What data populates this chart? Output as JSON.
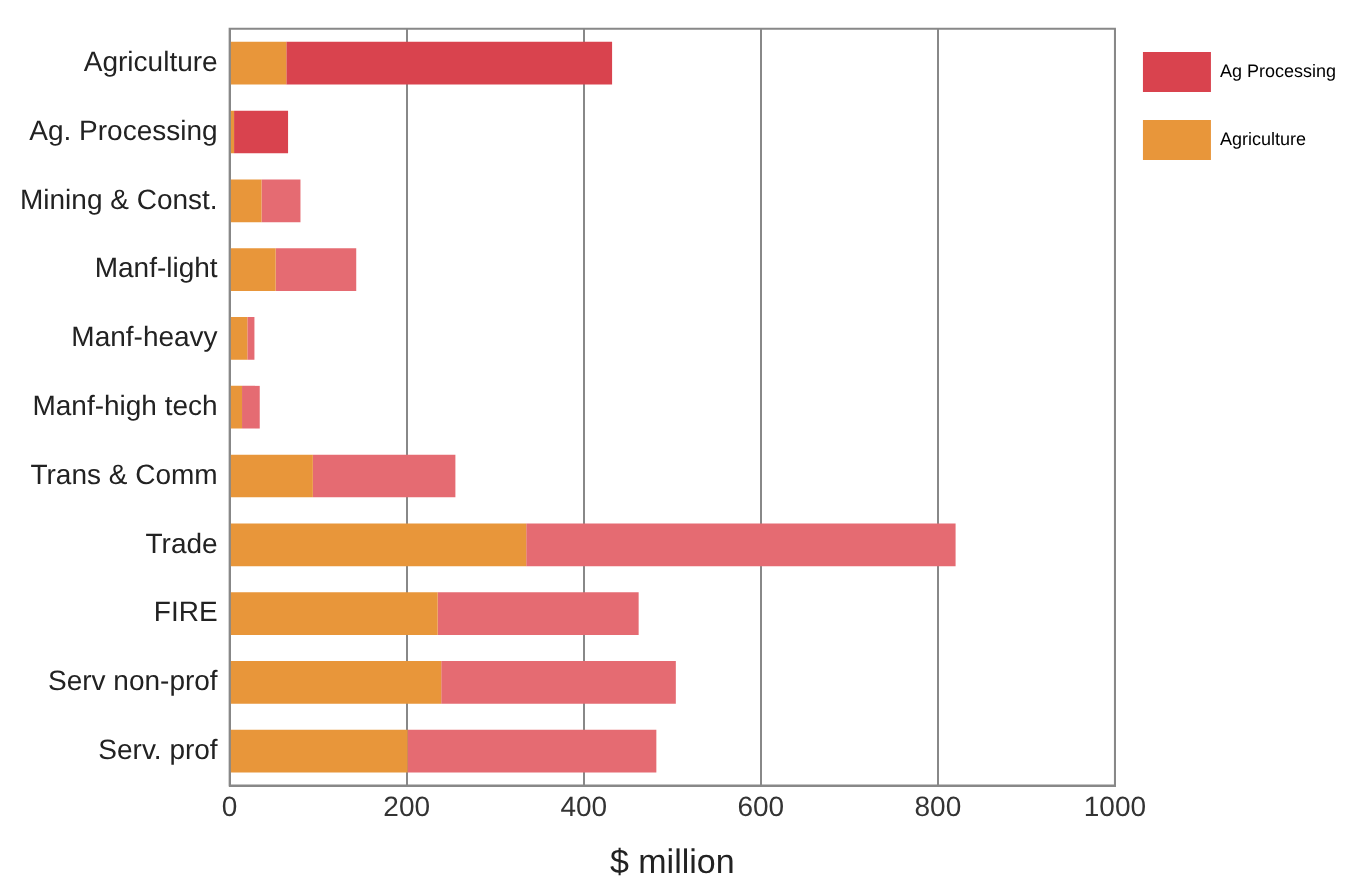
{
  "chart_data": {
    "type": "bar",
    "orientation": "horizontal",
    "stacked": true,
    "xlabel": "$ million",
    "categories": [
      "Agriculture",
      "Ag. Processing",
      "Mining & Const.",
      "Manf-light",
      "Manf-heavy",
      "Manf-high tech",
      "Trans & Comm",
      "Trade",
      "FIRE",
      "Serv non-prof",
      "Serv. prof"
    ],
    "series": [
      {
        "name": "Agriculture",
        "color": "#e8963a",
        "values": [
          64,
          5,
          36,
          52,
          20,
          14,
          94,
          335,
          235,
          239,
          201
        ]
      },
      {
        "name": "Ag Processing",
        "color": "#d9434e",
        "colors": [
          "#d9434e",
          "#d9434e",
          "#e56b72",
          "#e56b72",
          "#e56b72",
          "#e56b72",
          "#e56b72",
          "#e56b72",
          "#e56b72",
          "#e56b72",
          "#e56b72"
        ],
        "values": [
          368,
          61,
          44,
          91,
          8,
          20,
          161,
          485,
          227,
          265,
          281
        ]
      }
    ],
    "xlim": [
      0,
      1000
    ],
    "xticks": [
      0,
      200,
      400,
      600,
      800,
      1000
    ],
    "grid": "x",
    "legend": "top right"
  }
}
